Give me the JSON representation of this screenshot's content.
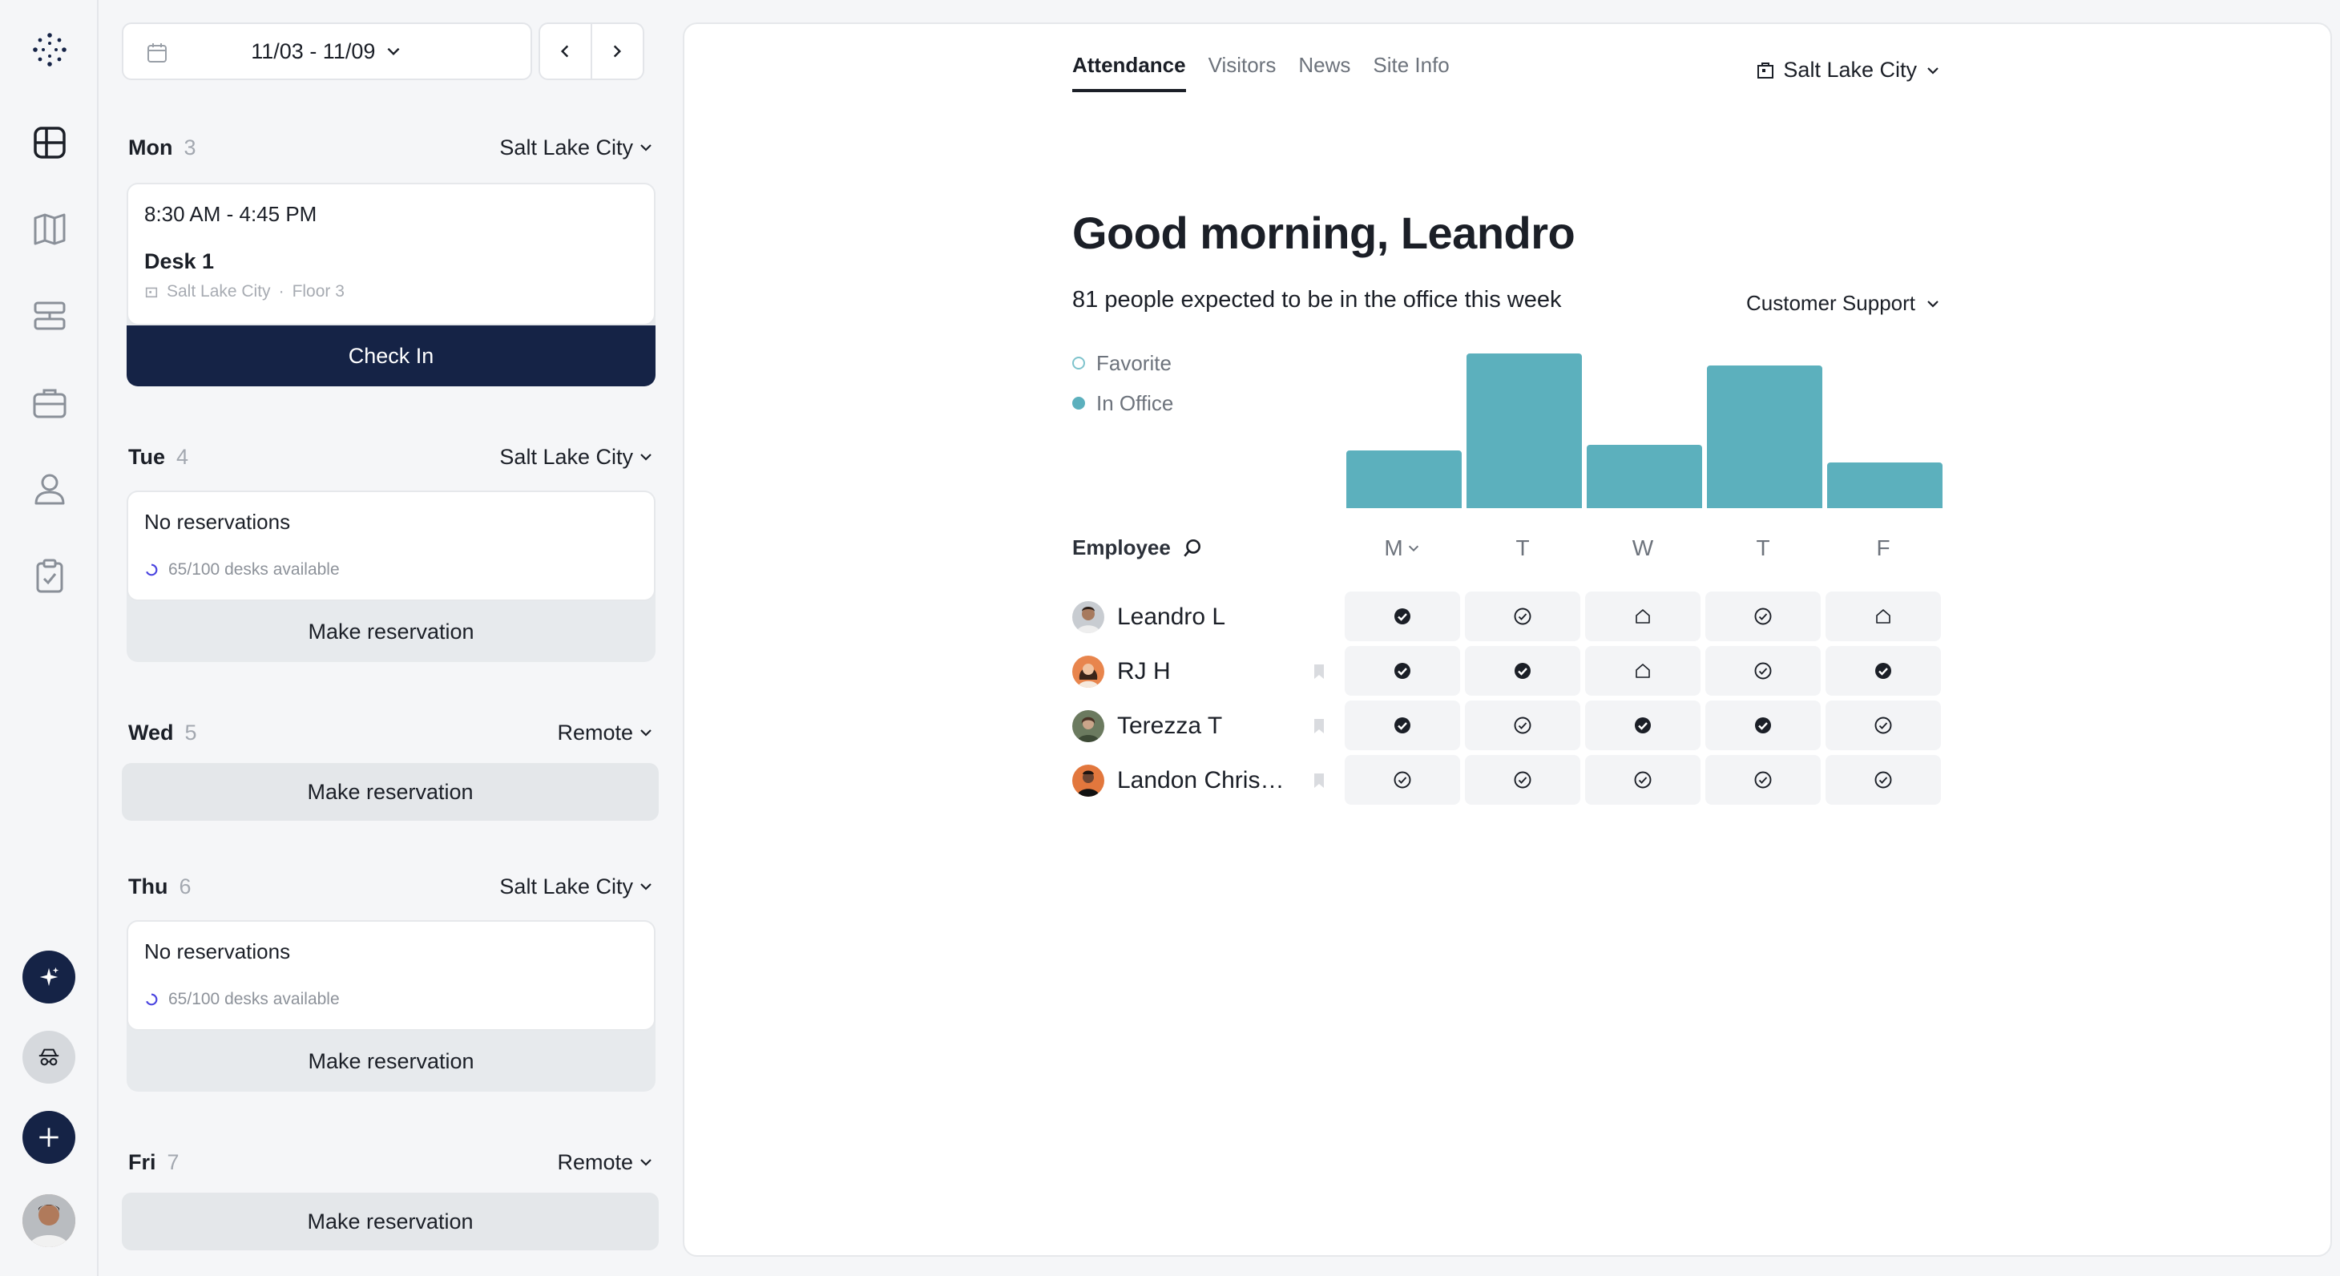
{
  "colors": {
    "accent": "#152346",
    "bar": "#5cb0bd",
    "favorite_ring": "#7ec3cc"
  },
  "rail": {
    "items": [
      "logo-icon",
      "dashboard-icon",
      "map-icon",
      "desks-icon",
      "briefcase-icon",
      "person-icon",
      "checklist-icon"
    ],
    "bottom": [
      "sparkle-icon",
      "incognito-icon",
      "plus-icon",
      "avatar"
    ]
  },
  "schedule": {
    "range_label": "11/03 - 11/09",
    "days": [
      {
        "name": "Mon",
        "num": "3",
        "location": "Salt Lake City",
        "time": "8:30 AM - 4:45 PM",
        "desk": "Desk 1",
        "desk_location": "Salt Lake City",
        "floor": "Floor 3",
        "action": "Check In"
      },
      {
        "name": "Tue",
        "num": "4",
        "location": "Salt Lake City",
        "status": "No reservations",
        "availability": "65/100 desks available",
        "action": "Make reservation"
      },
      {
        "name": "Wed",
        "num": "5",
        "location": "Remote",
        "action": "Make reservation"
      },
      {
        "name": "Thu",
        "num": "6",
        "location": "Salt Lake City",
        "status": "No reservations",
        "availability": "65/100 desks available",
        "action": "Make reservation"
      },
      {
        "name": "Fri",
        "num": "7",
        "location": "Remote",
        "action": "Make reservation"
      }
    ]
  },
  "main": {
    "tabs": [
      {
        "label": "Attendance",
        "active": true
      },
      {
        "label": "Visitors",
        "active": false
      },
      {
        "label": "News",
        "active": false
      },
      {
        "label": "Site Info",
        "active": false
      }
    ],
    "site": "Salt Lake City",
    "greeting": "Good morning, Leandro",
    "expected_text": "81 people expected to be in the office this week",
    "team": "Customer Support",
    "legend": {
      "favorite": "Favorite",
      "in_office": "In Office"
    },
    "employee_header": "Employee",
    "day_headers": [
      "M",
      "T",
      "W",
      "T",
      "F"
    ]
  },
  "chart_data": {
    "type": "bar",
    "categories": [
      "M",
      "T",
      "W",
      "T",
      "F"
    ],
    "series": [
      {
        "name": "In Office",
        "values": [
          19,
          51,
          21,
          47,
          15
        ]
      }
    ]
  },
  "employees": [
    {
      "name": "Leandro L",
      "bookmark": false,
      "days": [
        "filled",
        "outline",
        "home",
        "outline",
        "home"
      ]
    },
    {
      "name": "RJ H",
      "bookmark": true,
      "days": [
        "filled",
        "filled",
        "home",
        "outline",
        "filled"
      ]
    },
    {
      "name": "Terezza T",
      "bookmark": true,
      "days": [
        "filled",
        "outline",
        "filled",
        "filled",
        "outline"
      ]
    },
    {
      "name": "Landon Christ...",
      "bookmark": true,
      "days": [
        "outline",
        "outline",
        "outline",
        "outline",
        "outline"
      ]
    }
  ]
}
